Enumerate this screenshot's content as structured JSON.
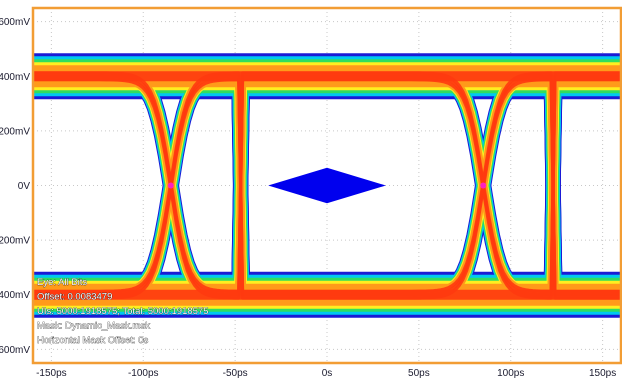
{
  "chart_data": {
    "type": "eye_diagram",
    "title": "",
    "x_axis": {
      "unit": "ps",
      "range": [
        -160,
        160
      ],
      "tick_values": [
        -150,
        -100,
        -50,
        0,
        50,
        100,
        150
      ],
      "tick_labels": [
        "-150ps",
        "-100ps",
        "-50ps",
        "0s",
        "50ps",
        "100ps",
        "150ps"
      ]
    },
    "y_axis": {
      "unit": "mV",
      "range": [
        -650,
        650
      ],
      "tick_values": [
        600,
        400,
        200,
        0,
        -200,
        -400,
        -600
      ],
      "tick_labels": [
        "600mV",
        "400mV",
        "200mV",
        "0V",
        "-200mV",
        "-400mV",
        "-600mV"
      ]
    },
    "grid": "dotted",
    "signal": {
      "high_level_mV": 400,
      "low_level_mV": -400,
      "crossing_times_ps": [
        -85,
        85
      ],
      "unit_interval_ps": 170,
      "transition_width_ps": 28
    },
    "mask": {
      "shape": "diamond",
      "center_ps": 0,
      "half_width_ps": 32,
      "half_height_mV": 65,
      "color": "#0000ee"
    },
    "density_colors": {
      "sparse": "#1a1ad6",
      "low": "#00c8f0",
      "mid": "#30dd60",
      "mid_high": "#ffee20",
      "high": "#ff9a1a",
      "peak": "#ff3a10",
      "max": "#ff20c0"
    },
    "info_lines": [
      "Eye: All Bits",
      "Offset: 0.0083479",
      "UIs: 5000:1918575; Total: 5000:1918575",
      "Mask: Dynamic_Mask.msk",
      "Horizontal Mask Offset: 0s"
    ]
  }
}
